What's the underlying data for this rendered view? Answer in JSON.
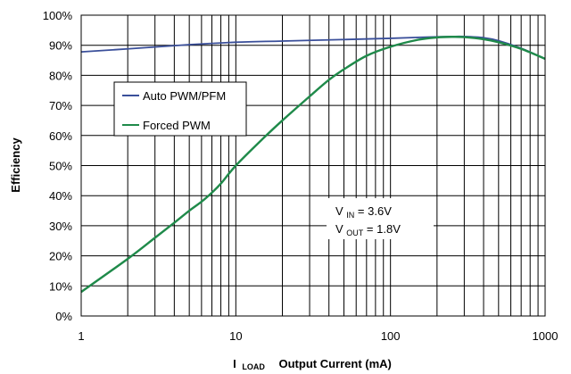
{
  "chart_data": {
    "type": "line",
    "x_scale": "log",
    "xlim": [
      1,
      1000
    ],
    "ylim": [
      0,
      100
    ],
    "xticks": [
      1,
      10,
      100,
      1000
    ],
    "xtick_labels": [
      "1",
      "10",
      "100",
      "1000"
    ],
    "yticks": [
      0,
      10,
      20,
      30,
      40,
      50,
      60,
      70,
      80,
      90,
      100
    ],
    "ytick_labels": [
      "0%",
      "10%",
      "20%",
      "30%",
      "40%",
      "50%",
      "60%",
      "70%",
      "80%",
      "90%",
      "100%"
    ],
    "grid": true,
    "xlabel": {
      "symbol": "I",
      "subscript": "LOAD",
      "rest": "Output Current (mA)"
    },
    "ylabel": "Efficiency",
    "legend_position": "upper-left",
    "series": [
      {
        "name": "Auto PWM/PFM",
        "color": "#3a4f9a",
        "x": [
          1,
          2,
          5,
          10,
          20,
          50,
          100,
          150,
          200,
          250,
          300,
          400,
          500,
          700,
          1000
        ],
        "y": [
          87.8,
          88.8,
          90.2,
          91.0,
          91.4,
          91.9,
          92.3,
          92.6,
          92.8,
          92.9,
          92.9,
          92.5,
          91.5,
          89,
          85.5
        ]
      },
      {
        "name": "Forced PWM",
        "color": "#1f8a4a",
        "x": [
          1,
          2,
          3,
          4,
          5,
          6,
          7,
          8,
          10,
          15,
          20,
          30,
          40,
          50,
          70,
          100,
          150,
          200,
          250,
          300,
          400,
          500,
          700,
          1000
        ],
        "y": [
          8,
          19,
          26,
          31,
          35,
          38,
          41,
          44,
          50,
          59,
          65,
          73,
          78.5,
          82,
          86.5,
          89.5,
          91.8,
          92.6,
          92.8,
          92.7,
          92.0,
          91.0,
          88.8,
          85.5
        ]
      }
    ],
    "annotation": {
      "line1": {
        "symbol": "V",
        "subscript": "IN",
        "value": " = 3.6V"
      },
      "line2": {
        "symbol": "V",
        "subscript": "OUT",
        "value": " = 1.8V"
      }
    }
  }
}
